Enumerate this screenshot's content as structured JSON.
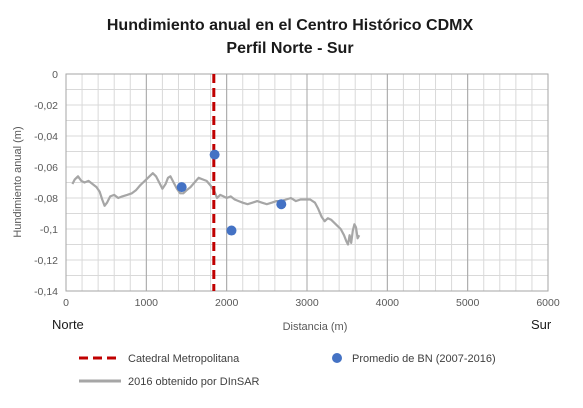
{
  "chart_data": {
    "type": "line",
    "title": "Hundimiento anual en el Centro Histórico CDMX",
    "subtitle": "Perfil Norte - Sur",
    "xlabel": "Distancia (m)",
    "ylabel": "Hundimiento anual (m)",
    "xlim": [
      0,
      6000
    ],
    "ylim": [
      -0.14,
      0
    ],
    "x_ticks": [
      0,
      1000,
      2000,
      3000,
      4000,
      5000,
      6000
    ],
    "x_tick_labels": [
      "0",
      "1000",
      "2000",
      "3000",
      "4000",
      "5000",
      "6000"
    ],
    "y_ticks": [
      0,
      -0.02,
      -0.04,
      -0.06,
      -0.08,
      -0.1,
      -0.12,
      -0.14
    ],
    "y_tick_labels": [
      "0",
      "-0,02",
      "-0,04",
      "-0,06",
      "-0,08",
      "-0,1",
      "-0,12",
      "-0,14"
    ],
    "x_minor_step": 200,
    "y_minor_step": 0.01,
    "grid": true,
    "direction_left": "Norte",
    "direction_right": "Sur",
    "legend_position": "bottom",
    "series": [
      {
        "name": "Catedral Metropolitana",
        "kind": "vline",
        "x": 1840,
        "color": "#c00000"
      },
      {
        "name": "Promedio de BN (2007-2016)",
        "kind": "scatter",
        "color": "#4472c4",
        "points": [
          {
            "x": 1440,
            "y": -0.073
          },
          {
            "x": 1850,
            "y": -0.052
          },
          {
            "x": 2060,
            "y": -0.101
          },
          {
            "x": 2680,
            "y": -0.084
          }
        ]
      },
      {
        "name": "2016 obtenido por DInSAR",
        "kind": "line",
        "color": "#a6a6a6",
        "points": [
          [
            80,
            -0.071
          ],
          [
            110,
            -0.068
          ],
          [
            150,
            -0.066
          ],
          [
            190,
            -0.069
          ],
          [
            230,
            -0.07
          ],
          [
            280,
            -0.069
          ],
          [
            330,
            -0.071
          ],
          [
            380,
            -0.073
          ],
          [
            420,
            -0.076
          ],
          [
            450,
            -0.081
          ],
          [
            480,
            -0.085
          ],
          [
            510,
            -0.083
          ],
          [
            550,
            -0.079
          ],
          [
            600,
            -0.078
          ],
          [
            650,
            -0.08
          ],
          [
            700,
            -0.079
          ],
          [
            760,
            -0.078
          ],
          [
            820,
            -0.077
          ],
          [
            870,
            -0.075
          ],
          [
            920,
            -0.072
          ],
          [
            960,
            -0.07
          ],
          [
            1000,
            -0.068
          ],
          [
            1040,
            -0.066
          ],
          [
            1080,
            -0.064
          ],
          [
            1120,
            -0.066
          ],
          [
            1160,
            -0.07
          ],
          [
            1200,
            -0.074
          ],
          [
            1240,
            -0.071
          ],
          [
            1270,
            -0.067
          ],
          [
            1300,
            -0.066
          ],
          [
            1340,
            -0.07
          ],
          [
            1380,
            -0.074
          ],
          [
            1420,
            -0.077
          ],
          [
            1460,
            -0.077
          ],
          [
            1500,
            -0.075
          ],
          [
            1550,
            -0.073
          ],
          [
            1600,
            -0.07
          ],
          [
            1650,
            -0.067
          ],
          [
            1700,
            -0.068
          ],
          [
            1750,
            -0.069
          ],
          [
            1800,
            -0.072
          ],
          [
            1850,
            -0.076
          ],
          [
            1880,
            -0.08
          ],
          [
            1920,
            -0.078
          ],
          [
            1960,
            -0.079
          ],
          [
            2000,
            -0.08
          ],
          [
            2050,
            -0.079
          ],
          [
            2100,
            -0.081
          ],
          [
            2150,
            -0.082
          ],
          [
            2200,
            -0.083
          ],
          [
            2260,
            -0.084
          ],
          [
            2320,
            -0.083
          ],
          [
            2380,
            -0.082
          ],
          [
            2440,
            -0.083
          ],
          [
            2500,
            -0.084
          ],
          [
            2560,
            -0.083
          ],
          [
            2620,
            -0.082
          ],
          [
            2680,
            -0.082
          ],
          [
            2740,
            -0.081
          ],
          [
            2800,
            -0.08
          ],
          [
            2860,
            -0.082
          ],
          [
            2920,
            -0.081
          ],
          [
            2980,
            -0.081
          ],
          [
            3040,
            -0.081
          ],
          [
            3100,
            -0.083
          ],
          [
            3140,
            -0.087
          ],
          [
            3180,
            -0.092
          ],
          [
            3220,
            -0.095
          ],
          [
            3260,
            -0.093
          ],
          [
            3300,
            -0.094
          ],
          [
            3340,
            -0.096
          ],
          [
            3380,
            -0.098
          ],
          [
            3420,
            -0.1
          ],
          [
            3460,
            -0.104
          ],
          [
            3490,
            -0.108
          ],
          [
            3510,
            -0.11
          ],
          [
            3530,
            -0.104
          ],
          [
            3550,
            -0.109
          ],
          [
            3570,
            -0.101
          ],
          [
            3590,
            -0.097
          ],
          [
            3610,
            -0.099
          ],
          [
            3630,
            -0.106
          ],
          [
            3650,
            -0.104
          ]
        ]
      }
    ]
  }
}
